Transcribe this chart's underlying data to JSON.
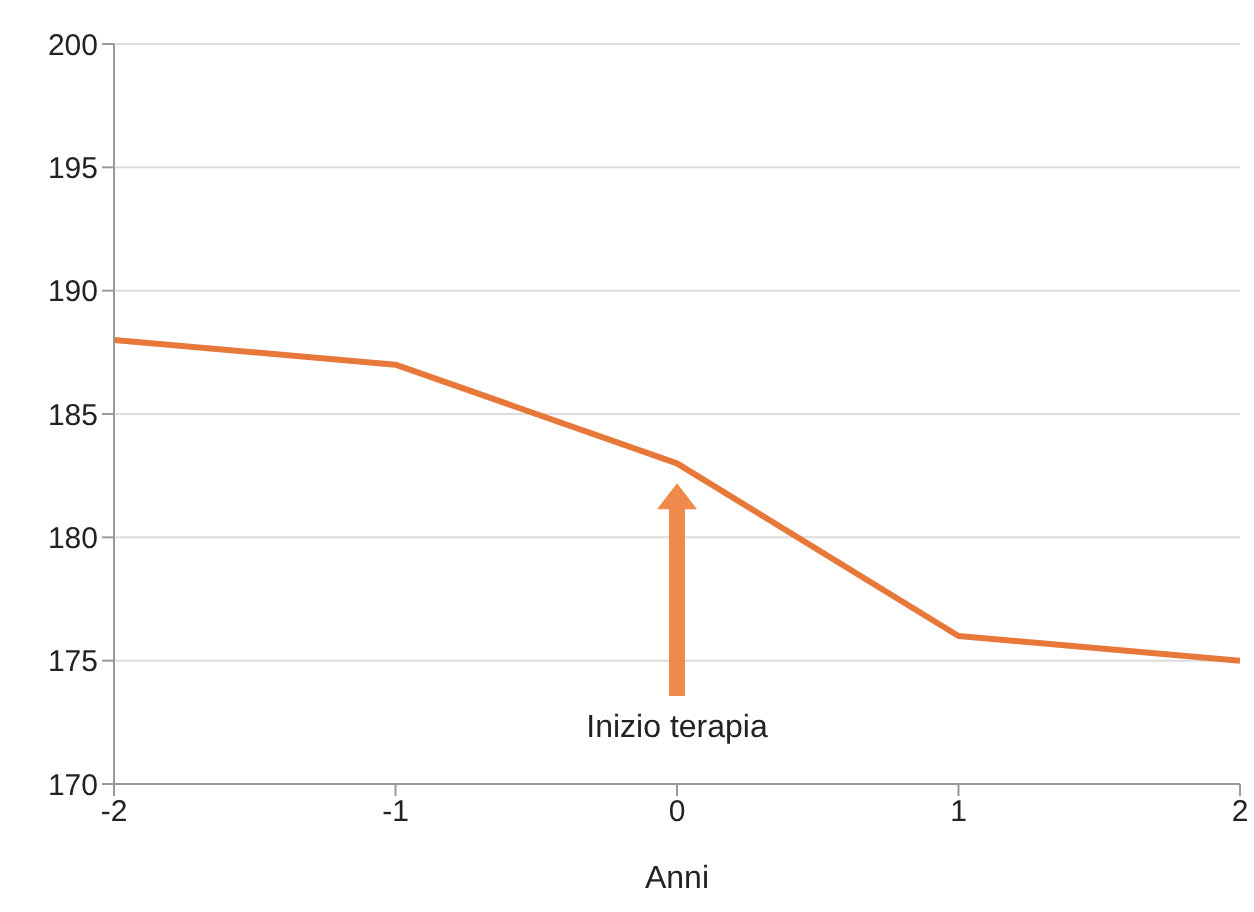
{
  "chart_data": {
    "type": "line",
    "xlabel": "Anni",
    "x": [
      -2,
      -1,
      0,
      1,
      2
    ],
    "series": [
      {
        "color": "#e8773a",
        "values": [
          188,
          187,
          183,
          176,
          175
        ]
      }
    ],
    "xlim": [
      -2,
      2
    ],
    "xticks": [
      -2,
      -1,
      0,
      1,
      2
    ],
    "ylim": [
      170,
      200
    ],
    "yticks": [
      170,
      175,
      180,
      185,
      190,
      195,
      200
    ],
    "grid": "y",
    "legend": false,
    "marker": "none",
    "line_style": "solid",
    "annotations": [
      "Inizio terapia"
    ]
  }
}
